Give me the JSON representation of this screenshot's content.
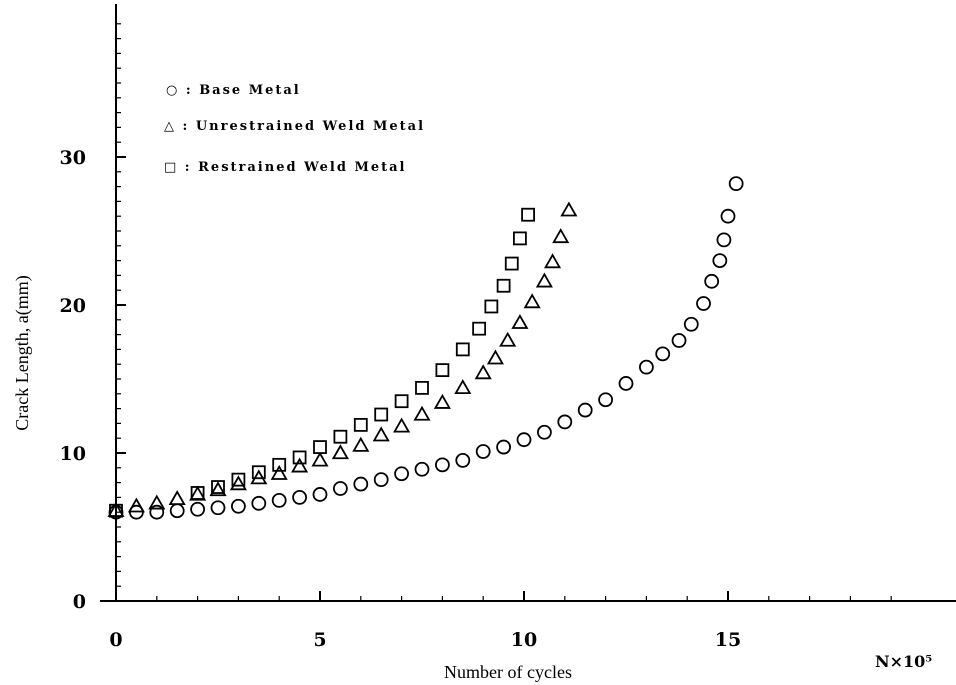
{
  "chart_data": {
    "type": "scatter",
    "title": "",
    "xlabel": "Number of cycles",
    "xunit_label": "N×10⁵",
    "ylabel": "Crack Length, a(mm)",
    "xlim": [
      0,
      20
    ],
    "ylim": [
      0,
      40
    ],
    "x_ticks": [
      "0",
      "5",
      "10",
      "15"
    ],
    "x_tick_values": [
      0,
      5,
      10,
      15
    ],
    "y_ticks": [
      "0",
      "10",
      "20",
      "30"
    ],
    "y_tick_values": [
      0,
      10,
      20,
      30
    ],
    "grid": false,
    "legend_position": "top-left",
    "series": [
      {
        "name": "Base Metal",
        "legend_label": "○ : Base Metal",
        "marker": "circle",
        "x": [
          0,
          0.5,
          1,
          1.5,
          2,
          2.5,
          3,
          3.5,
          4,
          4.5,
          5,
          5.5,
          6,
          6.5,
          7,
          7.5,
          8,
          8.5,
          9,
          9.5,
          10,
          10.5,
          11,
          11.5,
          12,
          12.5,
          13,
          13.4,
          13.8,
          14.1,
          14.4,
          14.6,
          14.8,
          14.9,
          15.0,
          15.2
        ],
        "y": [
          6.0,
          6.0,
          6.0,
          6.1,
          6.2,
          6.3,
          6.4,
          6.6,
          6.8,
          7.0,
          7.2,
          7.6,
          7.9,
          8.2,
          8.6,
          8.9,
          9.2,
          9.5,
          10.1,
          10.4,
          10.9,
          11.4,
          12.1,
          12.9,
          13.6,
          14.7,
          15.8,
          16.7,
          17.6,
          18.7,
          20.1,
          21.6,
          23.0,
          24.4,
          26.0,
          28.2
        ]
      },
      {
        "name": "Unrestrained Weld Metal",
        "legend_label": "△ : Unrestrained Weld Metal",
        "marker": "triangle",
        "x": [
          0,
          0.5,
          1,
          1.5,
          2,
          2.5,
          3,
          3.5,
          4,
          4.5,
          5,
          5.5,
          6,
          6.5,
          7,
          7.5,
          8,
          8.5,
          9,
          9.3,
          9.6,
          9.9,
          10.2,
          10.5,
          10.7,
          10.9,
          11.1
        ],
        "y": [
          6.1,
          6.4,
          6.6,
          6.9,
          7.2,
          7.5,
          7.9,
          8.3,
          8.6,
          9.1,
          9.5,
          10.0,
          10.5,
          11.2,
          11.8,
          12.6,
          13.4,
          14.4,
          15.4,
          16.4,
          17.6,
          18.8,
          20.2,
          21.6,
          22.9,
          24.6,
          26.4
        ]
      },
      {
        "name": "Restrained Weld Metal",
        "legend_label": "□ : Restrained Weld Metal",
        "marker": "square",
        "x": [
          0,
          2,
          2.5,
          3,
          3.5,
          4,
          4.5,
          5,
          5.5,
          6,
          6.5,
          7,
          7.5,
          8,
          8.5,
          8.9,
          9.2,
          9.5,
          9.7,
          9.9,
          10.1
        ],
        "y": [
          6.1,
          7.3,
          7.7,
          8.2,
          8.7,
          9.2,
          9.7,
          10.4,
          11.1,
          11.9,
          12.6,
          13.5,
          14.4,
          15.6,
          17.0,
          18.4,
          19.9,
          21.3,
          22.8,
          24.5,
          26.1
        ]
      }
    ]
  }
}
